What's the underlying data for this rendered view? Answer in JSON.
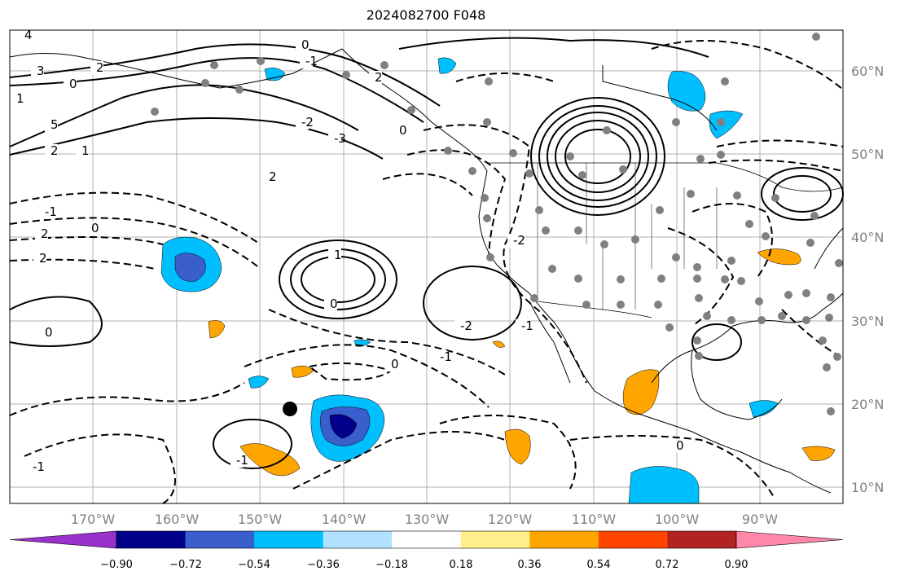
{
  "title": "2024082700 F048",
  "lon_ticks": [
    "170°W",
    "160°W",
    "150°W",
    "140°W",
    "130°W",
    "120°W",
    "110°W",
    "100°W",
    "90°W"
  ],
  "lat_ticks": [
    "60°N",
    "50°N",
    "40°N",
    "30°N",
    "20°N",
    "10°N"
  ],
  "colorbar": {
    "ticks": [
      "−0.90",
      "−0.72",
      "−0.54",
      "−0.36",
      "−0.18",
      "0.18",
      "0.36",
      "0.54",
      "0.72",
      "0.90"
    ],
    "colors": [
      "#9932cc",
      "#00008b",
      "#3a5fcd",
      "#00bfff",
      "#b0e2ff",
      "#ffffff",
      "#fff08c",
      "#ffa500",
      "#ff4500",
      "#b22222",
      "#ff88aa"
    ]
  },
  "contour_labels": [
    "4",
    "3",
    "2",
    "1",
    "0",
    "5",
    "2",
    "1",
    "0",
    "-1",
    "-2",
    "-3",
    "0",
    "-1",
    "2",
    "2",
    "0",
    "2",
    "1",
    "0",
    "2",
    "-2",
    "-1",
    "0",
    "-1",
    "0",
    "-1",
    "-2",
    "0",
    "-1"
  ],
  "colors": {
    "gridline": "#b0b0b0",
    "coastline": "#000000",
    "station_dot": "#808080"
  }
}
